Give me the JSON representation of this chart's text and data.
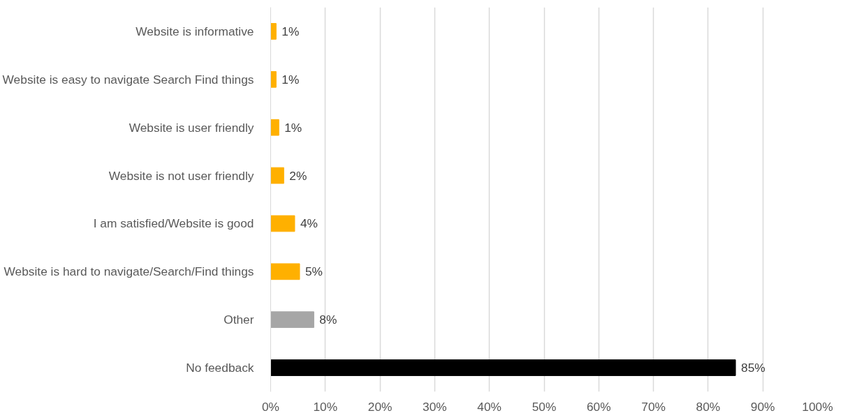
{
  "chart_data": {
    "type": "bar",
    "orientation": "horizontal",
    "categories": [
      "Website is informative",
      "Website is easy to navigate Search Find things",
      "Website is user friendly",
      "Website is not user friendly",
      "I am satisfied/Website is good",
      "Website is hard to navigate/Search/Find things",
      "Other",
      "No feedback"
    ],
    "values": [
      1.0,
      1.0,
      1.5,
      2.4,
      4.4,
      5.3,
      7.9,
      85
    ],
    "colors": [
      "#ffb000",
      "#ffb000",
      "#ffb000",
      "#ffb000",
      "#ffb000",
      "#ffb000",
      "#a6a6a6",
      "#000000"
    ],
    "value_labels": [
      "1%",
      "1%",
      "1%",
      "2%",
      "4%",
      "5%",
      "8%",
      "85%"
    ],
    "xlim": [
      0,
      100
    ],
    "xticks": [
      {
        "value": 0,
        "label": "0%"
      },
      {
        "value": 10,
        "label": "10%"
      },
      {
        "value": 20,
        "label": "20%"
      },
      {
        "value": 30,
        "label": "30%"
      },
      {
        "value": 40,
        "label": "40%"
      },
      {
        "value": 50,
        "label": "50%"
      },
      {
        "value": 60,
        "label": "60%"
      },
      {
        "value": 70,
        "label": "70%"
      },
      {
        "value": 80,
        "label": "80%"
      },
      {
        "value": 90,
        "label": "90%"
      },
      {
        "value": 100,
        "label": "100%"
      }
    ],
    "grid": "x"
  }
}
